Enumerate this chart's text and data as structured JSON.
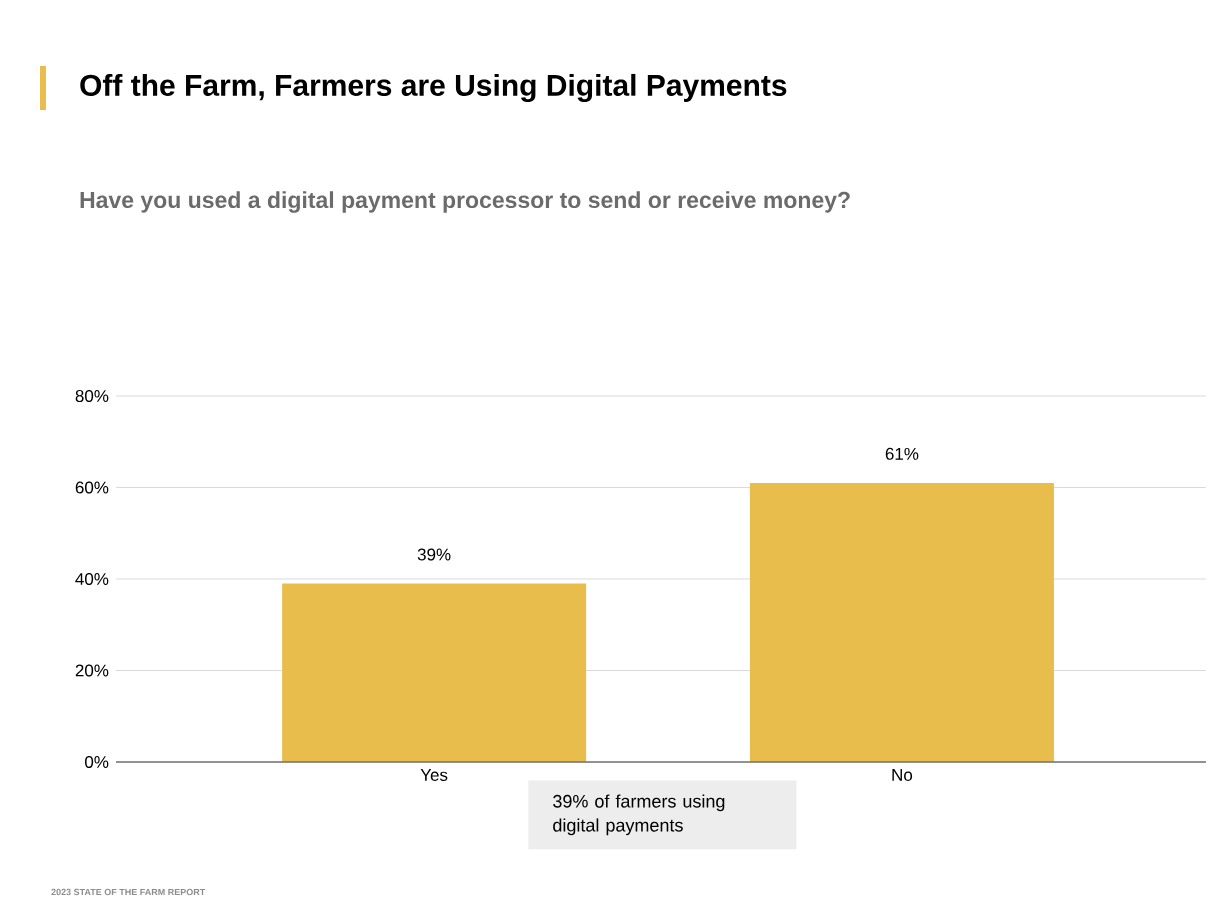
{
  "chart_data": {
    "type": "bar",
    "title": "Off the Farm, Farmers are Using Digital Payments",
    "subtitle": "Have you used a digital payment processor to send or receive money?",
    "categories": [
      "Yes",
      "No"
    ],
    "values": [
      39,
      61
    ],
    "value_labels": [
      "39%",
      "61%"
    ],
    "color": "#e9bd4b",
    "ylim": [
      0,
      80
    ],
    "yticks": [
      {
        "value": 0,
        "label": "0%"
      },
      {
        "value": 20,
        "label": "20%"
      },
      {
        "value": 40,
        "label": "40%"
      },
      {
        "value": 60,
        "label": "60%"
      },
      {
        "value": 80,
        "label": "80%"
      }
    ],
    "grid": "y",
    "annotations": [
      "39% of farmers using digital payments",
      "2023 STATE OF THE FARM REPORT"
    ]
  }
}
